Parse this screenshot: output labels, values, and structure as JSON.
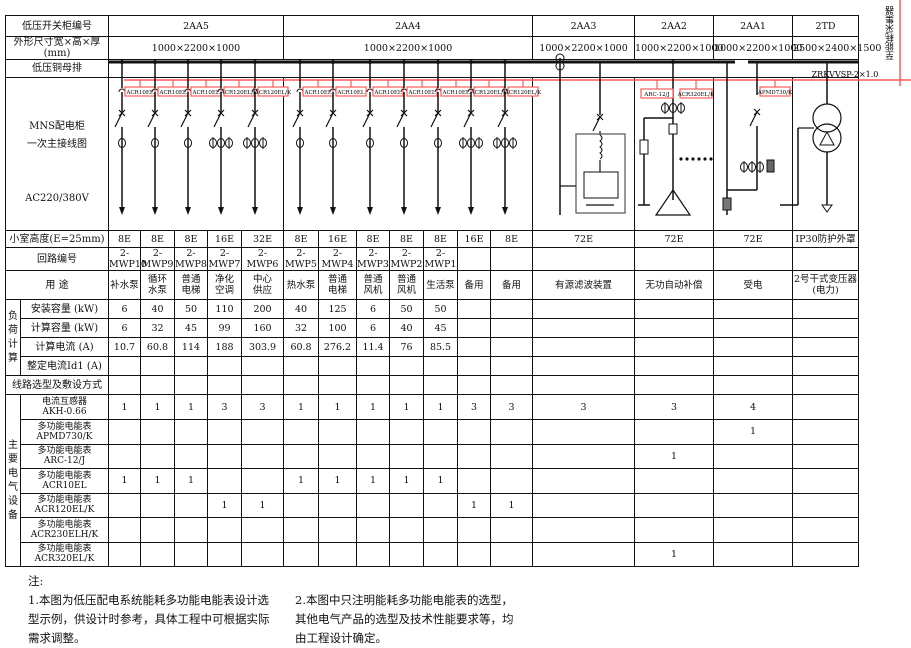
{
  "header": {
    "cabinet_label": "低压开关柜编号",
    "dims_label": "外形尺寸宽×高×厚(mm)",
    "busbar_label": "低压铜母排",
    "diagram_label": "MNS配电柜\n一次主接线图",
    "voltage_label": "AC220/380V",
    "cabinets": [
      {
        "id": "2AA5",
        "dims": "1000×2200×1000"
      },
      {
        "id": "2AA4",
        "dims": "1000×2200×1000"
      },
      {
        "id": "2AA3",
        "dims": "1000×2200×1000"
      },
      {
        "id": "2AA2",
        "dims": "1000×2200×1000"
      },
      {
        "id": "2AA1",
        "dims": "1000×2200×1000"
      },
      {
        "id": "2TD",
        "dims": "2500×2400×1500"
      }
    ]
  },
  "diagram": {
    "meters": [
      "ACR10EL",
      "ACR10EL",
      "ACR10EL",
      "ACR120EL/K",
      "ACR120EL/K",
      "ACR10EL",
      "ACR10EL",
      "ACR10EL",
      "ACR10EL",
      "ACR10EL",
      "ACR120EL/K",
      "ACR120EL/K"
    ],
    "aa2_meters": [
      "ARC-12/J",
      "ACR320EL/K"
    ],
    "aa1_meter": "APMD730/K",
    "cable_label": "ZRKVVSP-2×1.0",
    "to_label": "至能耗采集器",
    "line_color": "#ff5a5a"
  },
  "rows": [
    {
      "label": "小室高度(E=25mm)",
      "values": [
        "8E",
        "8E",
        "8E",
        "16E",
        "32E",
        "8E",
        "16E",
        "8E",
        "8E",
        "8E",
        "16E",
        "8E",
        "72E",
        "72E",
        "72E",
        "IP30防护外罩"
      ]
    },
    {
      "label": "回路编号",
      "values": [
        "2-MWP10",
        "2-MWP9",
        "2-MWP8",
        "2-MWP7",
        "2-MWP6",
        "2-MWP5",
        "2-MWP4",
        "2-MWP3",
        "2-MWP2",
        "2-MWP1",
        "",
        "",
        "",
        "",
        "",
        ""
      ]
    },
    {
      "label": "用  途",
      "values": [
        "补水泵",
        "循环\n水泵",
        "普通\n电梯",
        "净化\n空调",
        "中心\n供应",
        "热水泵",
        "普通\n电梯",
        "普通\n风机",
        "普通\n风机",
        "生活泵",
        "备用",
        "备用",
        "有源滤波装置",
        "无功自动补偿",
        "受电",
        "2号干式变压器\n(电力)"
      ]
    }
  ],
  "load_group": "负\n荷\n计\n算",
  "load_rows": [
    {
      "label": "安装容量 (kW)",
      "values": [
        "6",
        "40",
        "50",
        "110",
        "200",
        "40",
        "125",
        "6",
        "50",
        "50",
        "",
        "",
        "",
        "",
        "",
        ""
      ]
    },
    {
      "label": "计算容量 (kW)",
      "values": [
        "6",
        "32",
        "45",
        "99",
        "160",
        "32",
        "100",
        "6",
        "40",
        "45",
        "",
        "",
        "",
        "",
        "",
        ""
      ]
    },
    {
      "label": "计算电流 (A)",
      "values": [
        "10.7",
        "60.8",
        "114",
        "188",
        "303.9",
        "60.8",
        "276.2",
        "11.4",
        "76",
        "85.5",
        "",
        "",
        "",
        "",
        "",
        ""
      ]
    },
    {
      "label": "整定电流Id1 (A)",
      "values": [
        "",
        "",
        "",
        "",
        "",
        "",
        "",
        "",
        "",
        "",
        "",
        "",
        "",
        "",
        "",
        ""
      ]
    }
  ],
  "cable_row": {
    "label": "线路选型及敷设方式",
    "values": [
      "",
      "",
      "",
      "",
      "",
      "",
      "",
      "",
      "",
      "",
      "",
      "",
      "",
      "",
      "",
      ""
    ]
  },
  "equip_group": "主\n要\n电\n气\n设\n备",
  "equip_rows": [
    {
      "label": "电流互感器\nAKH-0.66",
      "values": [
        "1",
        "1",
        "1",
        "3",
        "3",
        "1",
        "1",
        "1",
        "1",
        "1",
        "3",
        "3",
        "3",
        "3",
        "4",
        ""
      ]
    },
    {
      "label": "多功能电能表\nAPMD730/K",
      "values": [
        "",
        "",
        "",
        "",
        "",
        "",
        "",
        "",
        "",
        "",
        "",
        "",
        "",
        "",
        "1",
        ""
      ]
    },
    {
      "label": "多功能电能表\nARC-12/J",
      "values": [
        "",
        "",
        "",
        "",
        "",
        "",
        "",
        "",
        "",
        "",
        "",
        "",
        "",
        "1",
        "",
        ""
      ]
    },
    {
      "label": "多功能电能表\nACR10EL",
      "values": [
        "1",
        "1",
        "1",
        "",
        "",
        "1",
        "1",
        "1",
        "1",
        "1",
        "",
        "",
        "",
        "",
        "",
        ""
      ]
    },
    {
      "label": "多功能电能表\nACR120EL/K",
      "values": [
        "",
        "",
        "",
        "1",
        "1",
        "",
        "",
        "",
        "",
        "",
        "1",
        "1",
        "",
        "",
        "",
        ""
      ]
    },
    {
      "label": "多功能电能表\nACR230ELH/K",
      "values": [
        "",
        "",
        "",
        "",
        "",
        "",
        "",
        "",
        "",
        "",
        "",
        "",
        "",
        "",
        "",
        ""
      ]
    },
    {
      "label": "多功能电能表\nACR320EL/K",
      "values": [
        "",
        "",
        "",
        "",
        "",
        "",
        "",
        "",
        "",
        "",
        "",
        "",
        "",
        "1",
        "",
        ""
      ]
    }
  ],
  "notes": {
    "title": "注:",
    "note1": "1.本图为低压配电系统能耗多功能电能表设计选\n型示例，供设计时参考，具体工程中可根据实际\n需求调整。",
    "note2": "2.本图中只注明能耗多功能电能表的选型，\n其他电气产品的选型及技术性能要求等，均\n由工程设计确定。"
  }
}
